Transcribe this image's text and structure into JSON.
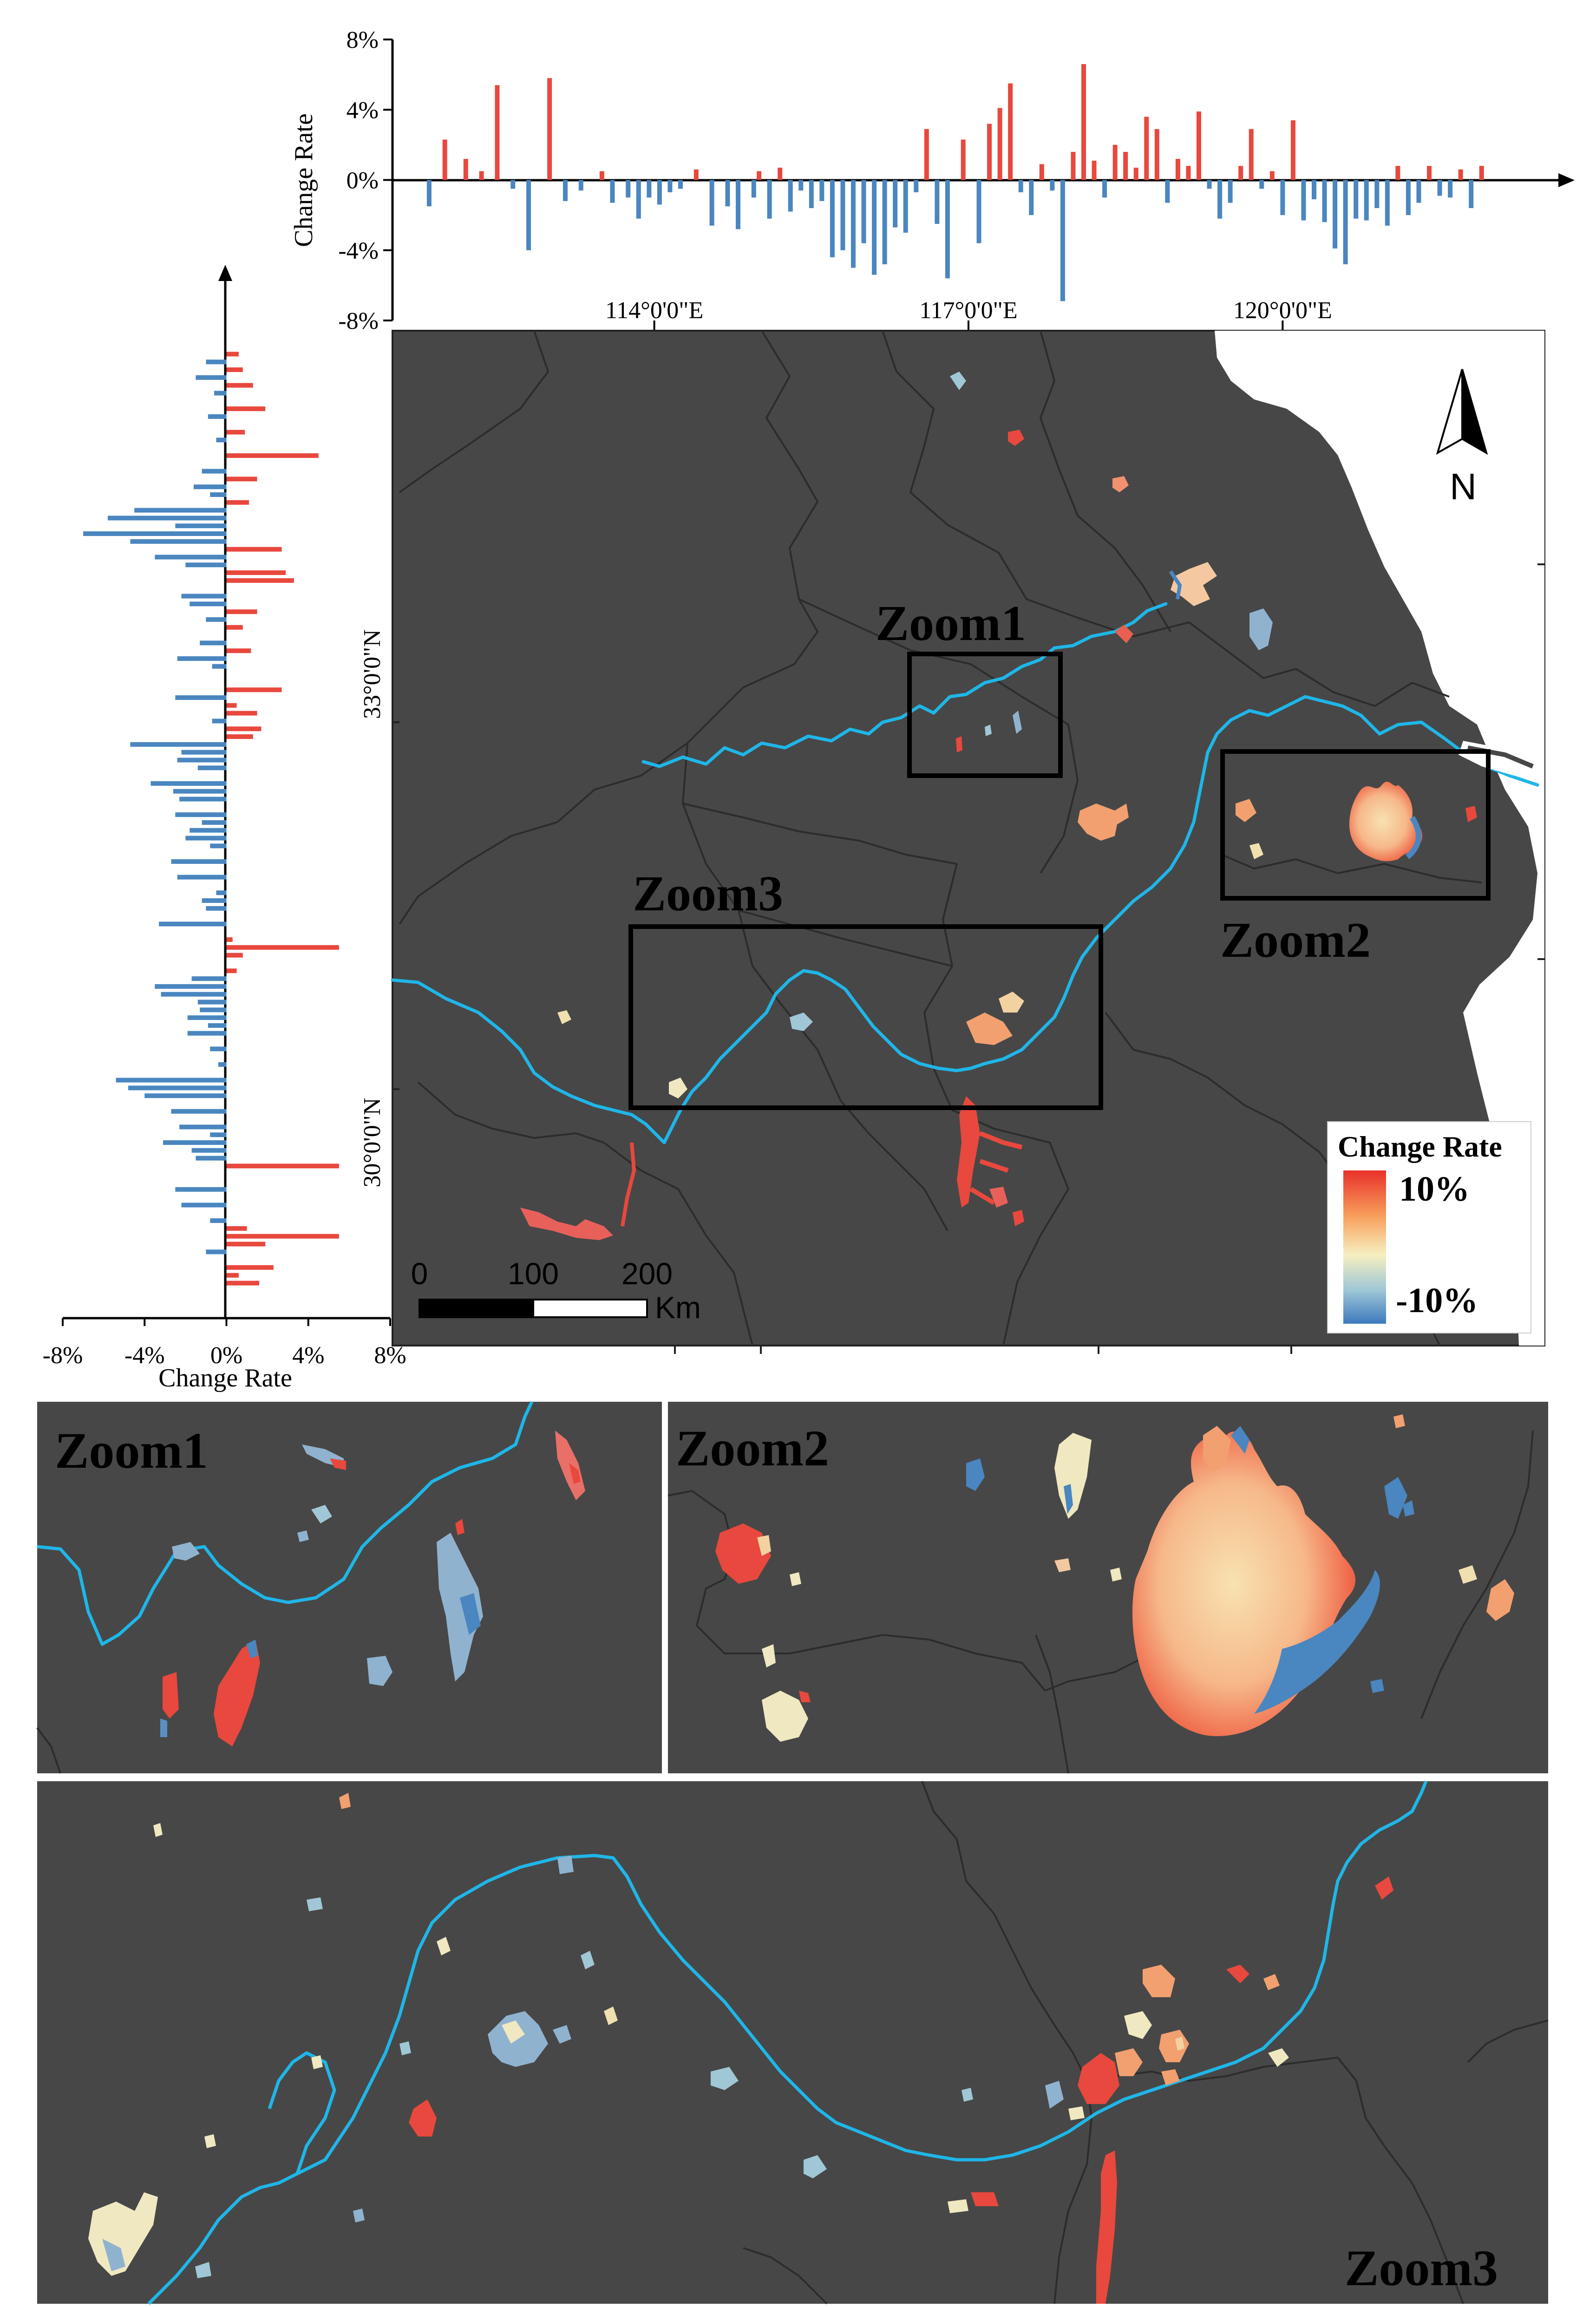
{
  "colors": {
    "map_background": "#474747",
    "river": "#1fb6e8",
    "positive_bar": "#e8483d",
    "negative_bar": "#4a86c0",
    "boundary": "#2c2c2c",
    "sea": "#ffffff",
    "zoom_box": "#000000"
  },
  "top_histogram": {
    "ylabel": "Change Rate",
    "yticks": [
      "8%",
      "4%",
      "0%",
      "-4%",
      "-8%"
    ],
    "xticks": [
      "114°0'0\"E",
      "117°0'0\"E",
      "120°0'0\"E"
    ]
  },
  "left_histogram": {
    "xlabel": "Change Rate",
    "xticks": [
      "-8%",
      "-4%",
      "0%",
      "4%",
      "8%"
    ],
    "yticks": [
      "33°0'0\"N",
      "30°0'0\"N"
    ]
  },
  "chart_data": [
    {
      "type": "bar",
      "orientation": "vertical",
      "xlabel": "",
      "ylabel": "Change Rate",
      "ylim": [
        -8,
        8
      ],
      "xlim": [
        111.5,
        122.5
      ],
      "xtick_values": [
        114,
        117,
        120
      ],
      "x": [
        111.85,
        112.0,
        112.2,
        112.35,
        112.5,
        112.65,
        112.8,
        113.0,
        113.15,
        113.3,
        113.5,
        113.6,
        113.75,
        113.85,
        113.95,
        114.05,
        114.15,
        114.25,
        114.4,
        114.55,
        114.7,
        114.8,
        114.95,
        115.0,
        115.1,
        115.2,
        115.3,
        115.4,
        115.5,
        115.6,
        115.7,
        115.8,
        115.9,
        116.0,
        116.1,
        116.2,
        116.3,
        116.4,
        116.5,
        116.6,
        116.7,
        116.8,
        116.95,
        117.1,
        117.2,
        117.3,
        117.4,
        117.5,
        117.6,
        117.7,
        117.8,
        117.9,
        118.0,
        118.1,
        118.2,
        118.3,
        118.4,
        118.5,
        118.6,
        118.7,
        118.8,
        118.9,
        119.0,
        119.1,
        119.2,
        119.3,
        119.4,
        119.5,
        119.6,
        119.7,
        119.8,
        119.9,
        120.0,
        120.1,
        120.2,
        120.3,
        120.4,
        120.5,
        120.6,
        120.7,
        120.8,
        120.9,
        121.0,
        121.1,
        121.2,
        121.3,
        121.4,
        121.5,
        121.6,
        121.7,
        121.8,
        121.9
      ],
      "values": [
        -1.5,
        2.3,
        1.2,
        0.5,
        5.4,
        -0.5,
        -4.0,
        5.8,
        -1.2,
        -0.6,
        0.5,
        -1.3,
        -1.0,
        -2.2,
        -1.0,
        -1.4,
        -0.7,
        -0.5,
        0.6,
        -2.6,
        -1.5,
        -2.8,
        -1.0,
        0.5,
        -2.2,
        0.7,
        -1.8,
        -0.6,
        -1.6,
        -1.2,
        -4.4,
        -4.0,
        -5.0,
        -3.6,
        -5.4,
        -4.8,
        -2.7,
        -3.0,
        -0.7,
        2.9,
        -2.5,
        -5.6,
        2.3,
        -3.6,
        3.2,
        4.1,
        5.5,
        -0.7,
        -2.0,
        0.9,
        -0.6,
        -6.9,
        1.6,
        6.6,
        1.1,
        -1.0,
        2.0,
        1.6,
        0.7,
        3.6,
        2.9,
        -1.3,
        1.2,
        0.8,
        3.9,
        -0.5,
        -2.2,
        -1.3,
        0.8,
        2.9,
        -0.5,
        0.5,
        -2.0,
        3.4,
        -2.3,
        -1.1,
        -2.4,
        -3.9,
        -4.8,
        -2.2,
        -2.3,
        -1.6,
        -2.6,
        0.8,
        -2.0,
        -1.3,
        0.8,
        -0.9,
        -1.0,
        0.6,
        -1.6,
        0.8
      ],
      "series_colors": {
        "positive": "#e8483d",
        "negative": "#4a86c0"
      },
      "grid": false
    },
    {
      "type": "bar",
      "orientation": "horizontal",
      "xlabel": "Change Rate",
      "ylabel": "",
      "xlim": [
        -8,
        8
      ],
      "ylim": [
        28.7,
        35.2
      ],
      "ytick_values": [
        33,
        30
      ],
      "y": [
        35.05,
        35.0,
        34.95,
        34.9,
        34.85,
        34.8,
        34.7,
        34.65,
        34.55,
        34.5,
        34.4,
        34.3,
        34.25,
        34.2,
        34.15,
        34.1,
        34.05,
        34.0,
        33.95,
        33.9,
        33.85,
        33.8,
        33.75,
        33.7,
        33.65,
        33.6,
        33.5,
        33.45,
        33.4,
        33.35,
        33.3,
        33.2,
        33.15,
        33.1,
        33.05,
        32.9,
        32.85,
        32.8,
        32.75,
        32.7,
        32.65,
        32.6,
        32.55,
        32.5,
        32.45,
        32.4,
        32.3,
        32.25,
        32.2,
        32.1,
        32.05,
        32.0,
        31.95,
        31.9,
        31.8,
        31.7,
        31.6,
        31.55,
        31.5,
        31.4,
        31.3,
        31.25,
        31.2,
        31.1,
        31.05,
        31.0,
        30.95,
        30.9,
        30.85,
        30.8,
        30.75,
        30.7,
        30.6,
        30.5,
        30.4,
        30.35,
        30.3,
        30.2,
        30.1,
        30.05,
        30.0,
        29.95,
        29.9,
        29.85,
        29.7,
        29.6,
        29.5,
        29.45,
        29.4,
        29.35,
        29.3,
        29.2,
        29.15,
        29.1
      ],
      "values": [
        0.6,
        -1.0,
        0.8,
        -1.5,
        1.3,
        -0.6,
        1.9,
        -0.9,
        0.9,
        -0.5,
        4.5,
        -1.2,
        1.5,
        -1.6,
        -0.8,
        1.1,
        -4.5,
        -5.8,
        -2.5,
        -7.0,
        -4.7,
        2.7,
        -3.5,
        -2.0,
        2.9,
        3.3,
        -2.2,
        -1.8,
        1.5,
        -1.0,
        0.8,
        -1.3,
        1.2,
        -2.4,
        -0.7,
        2.7,
        -2.5,
        0.5,
        1.5,
        -0.7,
        1.7,
        1.3,
        -4.7,
        -2.2,
        -2.4,
        -1.4,
        -3.7,
        -2.6,
        -2.3,
        -2.5,
        -1.2,
        -1.8,
        -2.0,
        -0.8,
        -2.7,
        -2.4,
        -0.5,
        -1.2,
        -1.0,
        -3.3,
        0.3,
        5.5,
        0.8,
        0.5,
        -1.7,
        -3.5,
        -3.2,
        -1.4,
        -1.3,
        -1.9,
        -0.9,
        -1.9,
        -0.8,
        -0.4,
        -5.4,
        -4.8,
        -4.0,
        -2.7,
        -2.3,
        -0.8,
        -3.1,
        -1.7,
        -1.5,
        5.5,
        -2.5,
        -2.2,
        -0.8,
        1.0,
        5.5,
        1.9,
        -1.0,
        2.3,
        0.6,
        1.6
      ],
      "series_colors": {
        "positive": "#e8483d",
        "negative": "#4a86c0"
      },
      "grid": false
    }
  ],
  "map": {
    "north_label": "N",
    "scale_ticks": [
      "0",
      "100",
      "200"
    ],
    "scale_unit": "Km",
    "zoom_labels": [
      "Zoom1",
      "Zoom2",
      "Zoom3"
    ],
    "legend": {
      "title": "Change Rate",
      "high": "10%",
      "low": "-10%"
    }
  },
  "zoom_panels": {
    "zoom1": {
      "label": "Zoom1"
    },
    "zoom2": {
      "label": "Zoom2"
    },
    "zoom3": {
      "label": "Zoom3"
    }
  }
}
